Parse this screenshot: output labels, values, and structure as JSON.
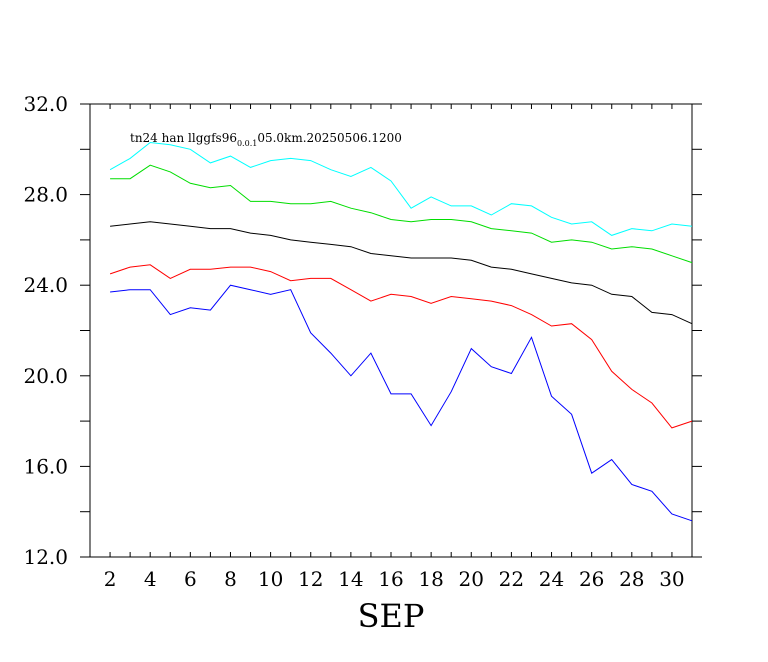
{
  "chart_data": {
    "type": "line",
    "title_main": "tn24 han llggfs96",
    "title_sub": "0.0.1",
    "title_rest": "05.0km.20250506.1200",
    "xlabel": "SEP",
    "ylabel": "",
    "xlim": [
      1,
      31
    ],
    "ylim": [
      12.0,
      32.0
    ],
    "x_ticks": [
      2,
      4,
      6,
      8,
      10,
      12,
      14,
      16,
      18,
      20,
      22,
      24,
      26,
      28,
      30
    ],
    "y_ticks": [
      "12.0",
      "16.0",
      "20.0",
      "24.0",
      "28.0",
      "32.0"
    ],
    "grid": false,
    "x": [
      2,
      3,
      4,
      5,
      6,
      7,
      8,
      9,
      10,
      11,
      12,
      13,
      14,
      15,
      16,
      17,
      18,
      19,
      20,
      21,
      22,
      23,
      24,
      25,
      26,
      27,
      28,
      29,
      30,
      31
    ],
    "series": [
      {
        "color": "#00ffff",
        "values": [
          29.1,
          29.6,
          30.3,
          30.2,
          30.0,
          29.4,
          29.7,
          29.2,
          29.5,
          29.6,
          29.5,
          29.1,
          28.8,
          29.2,
          28.6,
          27.4,
          27.9,
          27.5,
          27.5,
          27.1,
          27.6,
          27.5,
          27.0,
          26.7,
          26.8,
          26.2,
          26.5,
          26.4,
          26.7,
          26.6
        ]
      },
      {
        "color": "#00dd00",
        "values": [
          28.7,
          28.7,
          29.3,
          29.0,
          28.5,
          28.3,
          28.4,
          27.7,
          27.7,
          27.6,
          27.6,
          27.7,
          27.4,
          27.2,
          26.9,
          26.8,
          26.9,
          26.9,
          26.8,
          26.5,
          26.4,
          26.3,
          25.9,
          26.0,
          25.9,
          25.6,
          25.7,
          25.6,
          25.3,
          25.0
        ]
      },
      {
        "color": "#000000",
        "values": [
          26.6,
          26.7,
          26.8,
          26.7,
          26.6,
          26.5,
          26.5,
          26.3,
          26.2,
          26.0,
          25.9,
          25.8,
          25.7,
          25.4,
          25.3,
          25.2,
          25.2,
          25.2,
          25.1,
          24.8,
          24.7,
          24.5,
          24.3,
          24.1,
          24.0,
          23.6,
          23.5,
          22.8,
          22.7,
          22.3
        ]
      },
      {
        "color": "#ff0000",
        "values": [
          24.5,
          24.8,
          24.9,
          24.3,
          24.7,
          24.7,
          24.8,
          24.8,
          24.6,
          24.2,
          24.3,
          24.3,
          23.8,
          23.3,
          23.6,
          23.5,
          23.2,
          23.5,
          23.4,
          23.3,
          23.1,
          22.7,
          22.2,
          22.3,
          21.6,
          20.2,
          19.4,
          18.8,
          17.7,
          18.0
        ]
      },
      {
        "color": "#0000ff",
        "values": [
          23.7,
          23.8,
          23.8,
          22.7,
          23.0,
          22.9,
          24.0,
          23.8,
          23.6,
          23.8,
          21.9,
          21.0,
          20.0,
          21.0,
          19.2,
          19.2,
          17.8,
          19.3,
          21.2,
          20.4,
          20.1,
          21.7,
          19.1,
          18.3,
          15.7,
          16.3,
          15.2,
          14.9,
          13.9,
          13.6
        ]
      }
    ]
  }
}
